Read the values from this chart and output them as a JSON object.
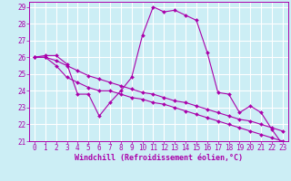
{
  "background_color": "#cceef5",
  "grid_color": "#ffffff",
  "line_color": "#aa00aa",
  "marker_color": "#aa00aa",
  "xlabel": "Windchill (Refroidissement éolien,°C)",
  "xlim": [
    -0.5,
    23.5
  ],
  "ylim": [
    21,
    29.3
  ],
  "yticks": [
    21,
    22,
    23,
    24,
    25,
    26,
    27,
    28,
    29
  ],
  "xticks": [
    0,
    1,
    2,
    3,
    4,
    5,
    6,
    7,
    8,
    9,
    10,
    11,
    12,
    13,
    14,
    15,
    16,
    17,
    18,
    19,
    20,
    21,
    22,
    23
  ],
  "series": [
    [
      26.0,
      26.1,
      26.1,
      25.6,
      23.8,
      23.8,
      22.5,
      23.3,
      24.0,
      24.8,
      27.3,
      29.0,
      28.7,
      28.8,
      28.5,
      28.2,
      26.3,
      23.9,
      23.8,
      22.7,
      23.1,
      22.7,
      21.7,
      20.8
    ],
    [
      26.0,
      26.0,
      25.5,
      24.8,
      24.5,
      24.2,
      24.0,
      24.0,
      23.8,
      23.6,
      23.5,
      23.3,
      23.2,
      23.0,
      22.8,
      22.6,
      22.4,
      22.2,
      22.0,
      21.8,
      21.6,
      21.4,
      21.2,
      21.0
    ],
    [
      26.0,
      26.0,
      25.8,
      25.5,
      25.2,
      24.9,
      24.7,
      24.5,
      24.3,
      24.1,
      23.9,
      23.8,
      23.6,
      23.4,
      23.3,
      23.1,
      22.9,
      22.7,
      22.5,
      22.3,
      22.2,
      22.0,
      21.8,
      21.6
    ]
  ],
  "tick_fontsize": 5.5,
  "xlabel_fontsize": 6.0
}
